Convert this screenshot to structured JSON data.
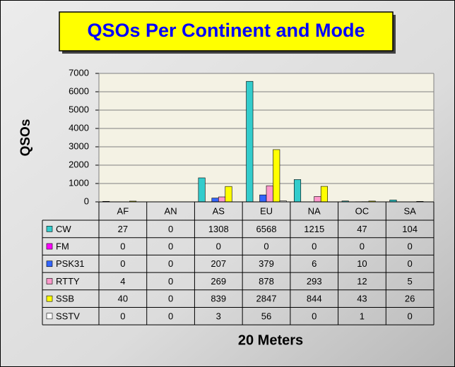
{
  "chart_data": {
    "type": "bar",
    "title": "QSOs Per Continent and Mode",
    "y_label": "QSOs",
    "x_label": "20 Meters",
    "categories": [
      "AF",
      "AN",
      "AS",
      "EU",
      "NA",
      "OC",
      "SA"
    ],
    "series": [
      {
        "name": "CW",
        "color": "#33cccc",
        "values": [
          27,
          0,
          1308,
          6568,
          1215,
          47,
          104
        ]
      },
      {
        "name": "FM",
        "color": "#ff00ff",
        "values": [
          0,
          0,
          0,
          0,
          0,
          0,
          0
        ]
      },
      {
        "name": "PSK31",
        "color": "#3366ff",
        "values": [
          0,
          0,
          207,
          379,
          6,
          10,
          0
        ]
      },
      {
        "name": "RTTY",
        "color": "#ff99cc",
        "values": [
          4,
          0,
          269,
          878,
          293,
          12,
          5
        ]
      },
      {
        "name": "SSB",
        "color": "#ffff00",
        "values": [
          40,
          0,
          839,
          2847,
          844,
          43,
          26
        ]
      },
      {
        "name": "SSTV",
        "color": "#ffffff",
        "values": [
          0,
          0,
          3,
          56,
          0,
          1,
          0
        ]
      }
    ],
    "ylim": [
      0,
      7000
    ],
    "yticks": [
      0,
      1000,
      2000,
      3000,
      4000,
      5000,
      6000,
      7000
    ],
    "grid": true
  }
}
